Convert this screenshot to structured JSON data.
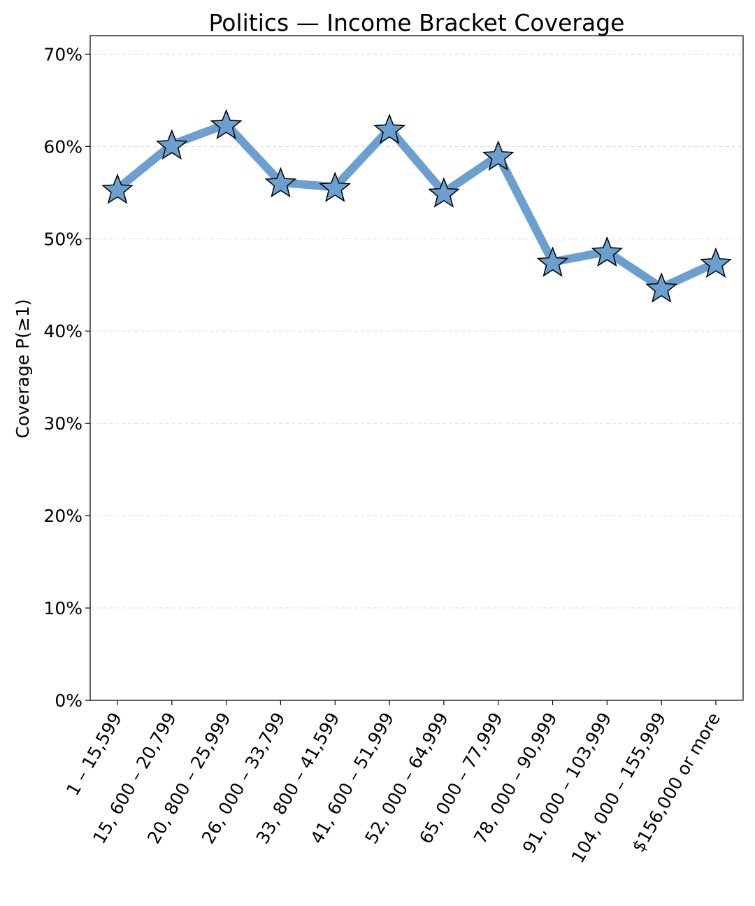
{
  "chart_data": {
    "type": "line",
    "title": "Politics — Income Bracket Coverage",
    "xlabel": "",
    "ylabel": "Coverage P(≥1)",
    "categories": [
      "1 – 15,599",
      "15, 600 – 20,799",
      "20, 800 – 25,999",
      "26, 000 – 33,799",
      "33, 800 – 41,599",
      "41, 600 – 51,999",
      "52, 000 – 64,999",
      "65, 000 – 77,999",
      "78, 000 – 90,999",
      "91, 000 – 103,999",
      "104, 000 – 155,999",
      "$156,000 or more"
    ],
    "series": [
      {
        "values": [
          0.554,
          0.602,
          0.624,
          0.561,
          0.556,
          0.619,
          0.55,
          0.59,
          0.475,
          0.486,
          0.447,
          0.474
        ],
        "color": "#6b9fcf",
        "marker": "star"
      }
    ],
    "ylim": [
      0,
      0.72
    ],
    "yticks": [
      0,
      0.1,
      0.2,
      0.3,
      0.4,
      0.5,
      0.6,
      0.7
    ],
    "ytick_labels": [
      "0%",
      "10%",
      "20%",
      "30%",
      "40%",
      "50%",
      "60%",
      "70%"
    ],
    "grid": "y-dashed",
    "legend": "none"
  }
}
